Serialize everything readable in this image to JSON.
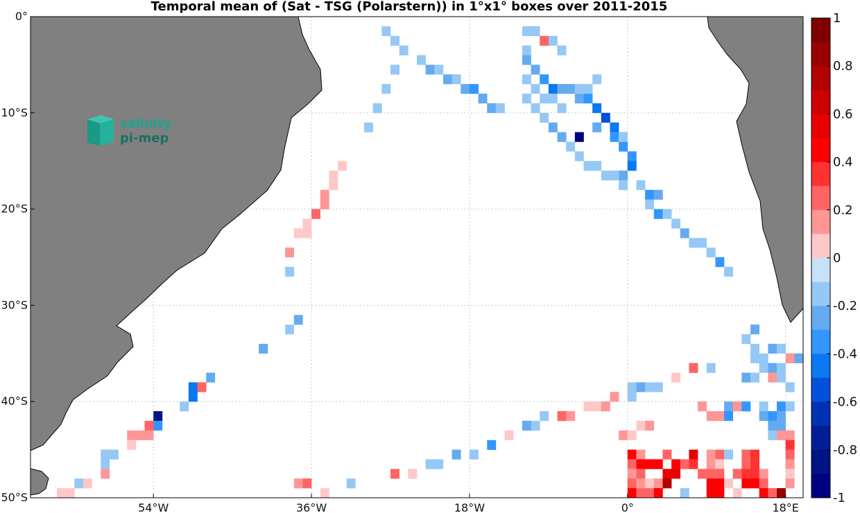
{
  "colors": {
    "land": "#808080",
    "coast": "#000000",
    "grid": "#c8c8c8",
    "frame": "#000000"
  },
  "logo": {
    "line1": "salinity",
    "line2": "pi-mep",
    "icon": "salinity-cube-icon"
  },
  "chart_data": {
    "type": "heatmap",
    "title": "Temporal mean of (Sat - TSG (Polarstern)) in 1°x1° boxes over 2011-2015",
    "xlabel": "",
    "ylabel": "",
    "units": "",
    "lon_range": [
      -68,
      20
    ],
    "lat_range": [
      -50,
      0
    ],
    "grid": true,
    "x_ticks": [
      {
        "value": -54,
        "label": "54°W"
      },
      {
        "value": -36,
        "label": "36°W"
      },
      {
        "value": -18,
        "label": "18°W"
      },
      {
        "value": 0,
        "label": "0°"
      },
      {
        "value": 18,
        "label": "18°E"
      }
    ],
    "y_ticks": [
      {
        "value": 0,
        "label": "0°"
      },
      {
        "value": -10,
        "label": "10°S"
      },
      {
        "value": -20,
        "label": "20°S"
      },
      {
        "value": -30,
        "label": "30°S"
      },
      {
        "value": -40,
        "label": "40°S"
      },
      {
        "value": -50,
        "label": "50°S"
      }
    ],
    "colorbar": {
      "range": [
        -1,
        1
      ],
      "step": 0.1,
      "ticks": [
        "1",
        "0.8",
        "0.6",
        "0.4",
        "0.2",
        "0",
        "-0.2",
        "-0.4",
        "-0.6",
        "-0.8",
        "-1"
      ],
      "placement": "right"
    },
    "cells": [
      [
        -28,
        -1,
        -0.2
      ],
      [
        -27,
        -2,
        -0.2
      ],
      [
        -26,
        -3,
        -0.2
      ],
      [
        -24,
        -4,
        -0.2
      ],
      [
        -23,
        -5,
        -0.3
      ],
      [
        -22,
        -5,
        -0.2
      ],
      [
        -21,
        -6,
        -0.3
      ],
      [
        -20,
        -6,
        -0.2
      ],
      [
        -19,
        -7,
        -0.3
      ],
      [
        -18,
        -7,
        -0.4
      ],
      [
        -17,
        -8,
        -0.3
      ],
      [
        -16,
        -9,
        -0.3
      ],
      [
        -15,
        -9,
        -0.2
      ],
      [
        -12,
        -1,
        -0.2
      ],
      [
        -12,
        -3,
        -0.2
      ],
      [
        -12,
        -4,
        -0.3
      ],
      [
        -11,
        -5,
        -0.3
      ],
      [
        -10,
        -6,
        -0.4
      ],
      [
        -9,
        -7,
        -0.5
      ],
      [
        -8,
        -7,
        -0.3
      ],
      [
        -7,
        -7,
        -0.3
      ],
      [
        -6,
        -8,
        -0.3
      ],
      [
        -5,
        -8,
        -0.4
      ],
      [
        -4,
        -9,
        -0.5
      ],
      [
        -3,
        -10,
        -0.6
      ],
      [
        -2,
        -11,
        -0.5
      ],
      [
        -2,
        -12,
        -0.4
      ],
      [
        -1,
        -13,
        -0.4
      ],
      [
        0,
        -14,
        -0.4
      ],
      [
        0,
        -15,
        -0.5
      ],
      [
        -1,
        -16,
        -0.3
      ],
      [
        1,
        -17,
        -0.2
      ],
      [
        2,
        -18,
        -0.4
      ],
      [
        3,
        -18,
        -0.3
      ],
      [
        2,
        -19,
        -0.2
      ],
      [
        3,
        -20,
        -0.4
      ],
      [
        4,
        -20,
        -0.2
      ],
      [
        5,
        -21,
        -0.2
      ],
      [
        6,
        -22,
        -0.3
      ],
      [
        7,
        -23,
        -0.2
      ],
      [
        8,
        -23,
        -0.2
      ],
      [
        9,
        -24,
        -0.2
      ],
      [
        10,
        -25,
        -0.4
      ],
      [
        11,
        -26,
        -0.2
      ],
      [
        -11,
        -1,
        -0.2
      ],
      [
        -9,
        -2,
        -0.2
      ],
      [
        -8,
        -3,
        -0.2
      ],
      [
        -12,
        -8,
        -0.2
      ],
      [
        -11,
        -9,
        -0.2
      ],
      [
        -10,
        -10,
        -0.2
      ],
      [
        -9,
        -11,
        -0.3
      ],
      [
        -8,
        -12,
        -0.3
      ],
      [
        -7,
        -13,
        -0.2
      ],
      [
        -6,
        -14,
        -0.2
      ],
      [
        -5,
        -15,
        -0.2
      ],
      [
        -4,
        -15,
        -0.2
      ],
      [
        -3,
        -16,
        -0.2
      ],
      [
        -2,
        -16,
        -0.2
      ],
      [
        -1,
        -17,
        -0.2
      ],
      [
        -1,
        -12,
        -0.2
      ],
      [
        -4,
        -11,
        -0.3
      ],
      [
        -6,
        -7,
        -0.2
      ],
      [
        -10,
        -2,
        0.3
      ],
      [
        -6,
        -12,
        -1.0
      ],
      [
        -12,
        -6,
        -0.2
      ],
      [
        -11,
        -7,
        -0.2
      ],
      [
        -10,
        -8,
        -0.2
      ],
      [
        -9,
        -8,
        -0.2
      ],
      [
        -8,
        -9,
        -0.2
      ],
      [
        -4,
        -6,
        -0.2
      ],
      [
        -5,
        -7,
        -0.2
      ],
      [
        -27,
        -5,
        -0.2
      ],
      [
        -28,
        -7,
        -0.2
      ],
      [
        -29,
        -9,
        -0.2
      ],
      [
        -30,
        -11,
        -0.2
      ],
      [
        -33,
        -15,
        0.1
      ],
      [
        -34,
        -16,
        0.1
      ],
      [
        -34,
        -17,
        0.1
      ],
      [
        -35,
        -18,
        0.2
      ],
      [
        -35,
        -19,
        0.2
      ],
      [
        -36,
        -20,
        0.3
      ],
      [
        -37,
        -21,
        0.1
      ],
      [
        -37,
        -22,
        0.1
      ],
      [
        -38,
        -22,
        0.1
      ],
      [
        -39,
        -24,
        0.2
      ],
      [
        -39,
        -26,
        -0.2
      ],
      [
        -38,
        -31,
        -0.3
      ],
      [
        -39,
        -32,
        -0.2
      ],
      [
        -42,
        -34,
        -0.3
      ],
      [
        -48,
        -37,
        -0.3
      ],
      [
        -50,
        -38,
        -0.5
      ],
      [
        -50,
        -39,
        -0.5
      ],
      [
        -49,
        -38,
        0.3
      ],
      [
        -51,
        -40,
        -0.2
      ],
      [
        -54,
        -41,
        -0.9
      ],
      [
        -54,
        -42,
        -0.4
      ],
      [
        -55,
        -42,
        0.3
      ],
      [
        -55,
        -43,
        0.2
      ],
      [
        -56,
        -43,
        0.2
      ],
      [
        -57,
        -43,
        0.2
      ],
      [
        -57,
        -44,
        0.1
      ],
      [
        -59,
        -45,
        -0.2
      ],
      [
        -60,
        -45,
        -0.2
      ],
      [
        -60,
        -46,
        -0.2
      ],
      [
        -60,
        -47,
        0.2
      ],
      [
        -63,
        -48,
        -0.2
      ],
      [
        -62,
        -48,
        0.1
      ],
      [
        -64,
        -49,
        0.1
      ],
      [
        -65,
        -49,
        0.1
      ],
      [
        -38,
        -48,
        0.2
      ],
      [
        -37,
        -48,
        0.3
      ],
      [
        -35,
        -49,
        0.1
      ],
      [
        -32,
        -48,
        -0.2
      ],
      [
        -27,
        -47,
        0.3
      ],
      [
        -25,
        -47,
        0.1
      ],
      [
        -23,
        -46,
        -0.2
      ],
      [
        -22,
        -46,
        -0.2
      ],
      [
        -20,
        -45,
        -0.3
      ],
      [
        -18,
        -45,
        -0.2
      ],
      [
        -16,
        -44,
        -0.4
      ],
      [
        -14,
        -43,
        0.1
      ],
      [
        -11,
        -42,
        -0.2
      ],
      [
        -12,
        -42,
        -0.3
      ],
      [
        -10,
        -41,
        -0.2
      ],
      [
        -8,
        -41,
        0.3
      ],
      [
        -7,
        -41,
        0.2
      ],
      [
        -5,
        -40,
        0.1
      ],
      [
        -4,
        -40,
        0.1
      ],
      [
        -3,
        -40,
        0.2
      ],
      [
        -2,
        -39,
        0.2
      ],
      [
        0,
        -38,
        -0.2
      ],
      [
        0,
        -39,
        -0.2
      ],
      [
        1,
        -38,
        -0.3
      ],
      [
        2,
        -38,
        -0.2
      ],
      [
        3,
        -38,
        -0.2
      ],
      [
        5,
        -37,
        0.1
      ],
      [
        7,
        -36,
        0.3
      ],
      [
        9,
        -36,
        -0.2
      ],
      [
        14,
        -35,
        -0.2
      ],
      [
        15,
        -35,
        -0.2
      ],
      [
        16,
        -34,
        -0.3
      ],
      [
        17,
        -34,
        -0.2
      ],
      [
        18,
        -35,
        0.2
      ],
      [
        19,
        -35,
        -0.3
      ],
      [
        15,
        -36,
        -0.2
      ],
      [
        16,
        -36,
        -0.3
      ],
      [
        17,
        -36,
        -0.2
      ],
      [
        13,
        -37,
        -0.3
      ],
      [
        14,
        -37,
        -0.2
      ],
      [
        16,
        -37,
        0.2
      ],
      [
        17,
        -37,
        -0.2
      ],
      [
        18,
        -38,
        -0.2
      ],
      [
        8,
        -40,
        0.2
      ],
      [
        9,
        -41,
        0.2
      ],
      [
        10,
        -41,
        0.2
      ],
      [
        11,
        -40,
        -0.3
      ],
      [
        11,
        -41,
        -0.4
      ],
      [
        12,
        -40,
        0.2
      ],
      [
        13,
        -40,
        -0.4
      ],
      [
        15,
        -40,
        -0.2
      ],
      [
        17,
        -40,
        -0.4
      ],
      [
        18,
        -40,
        -0.2
      ],
      [
        15,
        -41,
        -0.3
      ],
      [
        16,
        -41,
        -0.4
      ],
      [
        17,
        -41,
        -0.3
      ],
      [
        16,
        -42,
        -0.3
      ],
      [
        17,
        -42,
        -0.3
      ],
      [
        16,
        -43,
        -0.2
      ],
      [
        17,
        -43,
        0.2
      ],
      [
        18,
        -43,
        0.2
      ],
      [
        14,
        -34,
        -0.2
      ],
      [
        13,
        -33,
        -0.2
      ],
      [
        14,
        -32,
        -0.3
      ],
      [
        -1,
        -43,
        0.2
      ],
      [
        0,
        -43,
        0.1
      ],
      [
        1,
        -42,
        0.1
      ],
      [
        2,
        -42,
        0.2
      ],
      [
        18,
        -44,
        0.4
      ],
      [
        18,
        -45,
        0.3
      ],
      [
        18,
        -46,
        0.2
      ],
      [
        18,
        -47,
        0.1
      ],
      [
        0,
        -45,
        0.5
      ],
      [
        0,
        -46,
        0.3
      ],
      [
        0,
        -47,
        0.2
      ],
      [
        0,
        -48,
        0.3
      ],
      [
        0,
        -49,
        0.5
      ],
      [
        1,
        -45,
        0.2
      ],
      [
        1,
        -46,
        0.5
      ],
      [
        1,
        -47,
        0.3
      ],
      [
        1,
        -48,
        0.2
      ],
      [
        1,
        -49,
        0.3
      ],
      [
        2,
        -46,
        0.5
      ],
      [
        2,
        -48,
        0.1
      ],
      [
        2,
        -49,
        0.3
      ],
      [
        3,
        -46,
        0.5
      ],
      [
        3,
        -48,
        0.2
      ],
      [
        3,
        -49,
        0.5
      ],
      [
        4,
        -45,
        0.3
      ],
      [
        4,
        -47,
        0.6
      ],
      [
        4,
        -48,
        0.8
      ],
      [
        5,
        -46,
        0.5
      ],
      [
        5,
        -47,
        0.6
      ],
      [
        6,
        -46,
        0.3
      ],
      [
        6,
        -49,
        -0.2
      ],
      [
        7,
        -45,
        0.6
      ],
      [
        7,
        -46,
        0.4
      ],
      [
        8,
        -47,
        0.3
      ],
      [
        9,
        -45,
        0.2
      ],
      [
        10,
        -45,
        0.3
      ],
      [
        11,
        -45,
        -0.2
      ],
      [
        9,
        -46,
        0.2
      ],
      [
        10,
        -46,
        0.1
      ],
      [
        9,
        -47,
        0.3
      ],
      [
        10,
        -47,
        0.3
      ],
      [
        9,
        -48,
        0.5
      ],
      [
        10,
        -48,
        0.5
      ],
      [
        9,
        -49,
        0.5
      ],
      [
        10,
        -49,
        0.5
      ],
      [
        11,
        -48,
        0.1
      ],
      [
        12,
        -49,
        0.1
      ],
      [
        13,
        -45,
        0.3
      ],
      [
        14,
        -45,
        0.4
      ],
      [
        13,
        -46,
        0.3
      ],
      [
        14,
        -46,
        0.4
      ],
      [
        12,
        -47,
        0.3
      ],
      [
        13,
        -47,
        0.4
      ],
      [
        14,
        -47,
        0.4
      ],
      [
        15,
        -47,
        0.2
      ],
      [
        13,
        -48,
        0.5
      ],
      [
        14,
        -48,
        0.5
      ],
      [
        15,
        -48,
        0.3
      ],
      [
        15,
        -49,
        0.5
      ],
      [
        16,
        -49,
        0.3
      ],
      [
        17,
        -49,
        0.9
      ],
      [
        18,
        -48,
        0.2
      ]
    ]
  }
}
